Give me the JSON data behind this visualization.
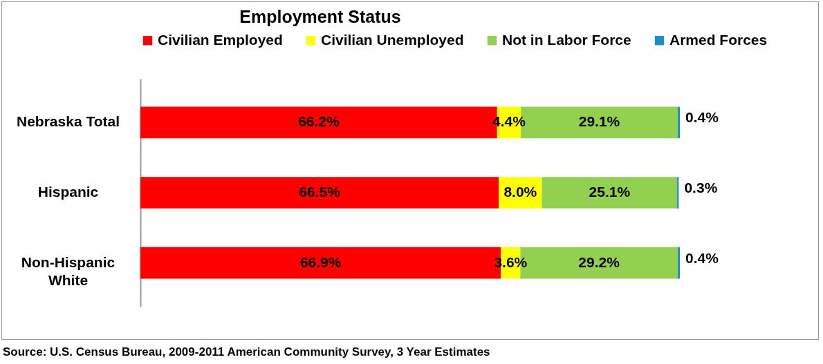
{
  "chart_data": {
    "type": "bar",
    "orientation": "horizontal",
    "stacked": true,
    "title": "Employment Status",
    "categories": [
      "Nebraska Total",
      "Hispanic",
      "Non-Hispanic White"
    ],
    "series": [
      {
        "name": "Civilian Employed",
        "color": "#ff0000",
        "values": [
          66.2,
          66.5,
          66.9
        ],
        "value_labels": [
          "66.2%",
          "66.5%",
          "66.9%"
        ]
      },
      {
        "name": "Civilian Unemployed",
        "color": "#ffff00",
        "values": [
          4.4,
          8.0,
          3.6
        ],
        "value_labels": [
          "4.4%",
          "8.0%",
          "3.6%"
        ]
      },
      {
        "name": "Not in Labor Force",
        "color": "#92d050",
        "values": [
          29.1,
          25.1,
          29.2
        ],
        "value_labels": [
          "29.1%",
          "25.1%",
          "29.2%"
        ]
      },
      {
        "name": "Armed Forces",
        "color": "#1f8fc0",
        "values": [
          0.4,
          0.3,
          0.4
        ],
        "value_labels": [
          "0.4%",
          "0.3%",
          "0.4%"
        ]
      }
    ],
    "legend": "top",
    "grid": false,
    "annotations": [
      "Source: U.S. Census Bureau, 2009-2011 American Community Survey, 3 Year Estimates"
    ]
  }
}
